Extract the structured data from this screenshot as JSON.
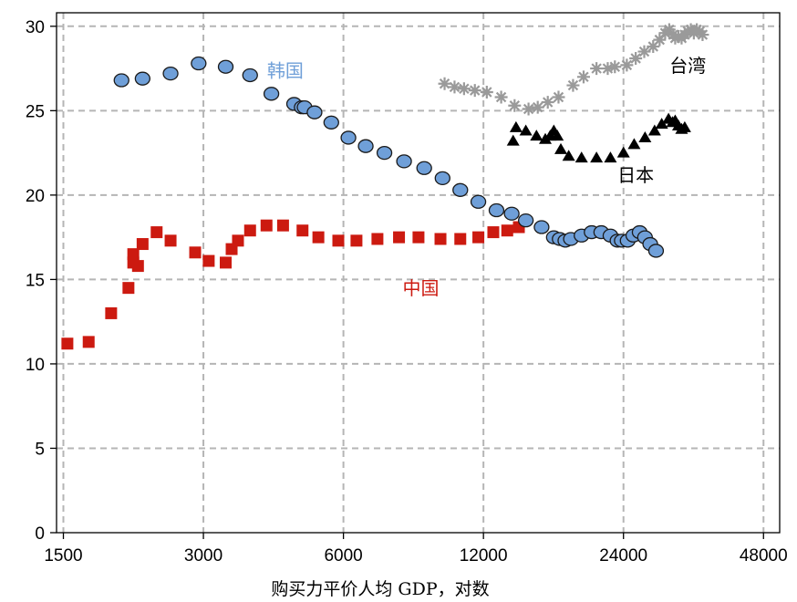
{
  "chart_data": {
    "type": "scatter",
    "xlabel": "购买力平价人均 GDP，对数",
    "ylabel": "",
    "x_scale": "log",
    "xlim": [
      1450,
      52000
    ],
    "ylim": [
      0,
      30.8
    ],
    "x_ticks": [
      1500,
      3000,
      6000,
      12000,
      24000,
      48000
    ],
    "y_ticks": [
      0,
      5,
      10,
      15,
      20,
      25,
      30
    ],
    "grid": true,
    "series": [
      {
        "name": "中国",
        "marker": "square",
        "color": "#cc1a10",
        "points": [
          [
            1530,
            11.2
          ],
          [
            1700,
            11.3
          ],
          [
            1900,
            13.0
          ],
          [
            2070,
            14.5
          ],
          [
            2120,
            16.5
          ],
          [
            2120,
            16.0
          ],
          [
            2170,
            15.8
          ],
          [
            2220,
            17.1
          ],
          [
            2380,
            17.8
          ],
          [
            2550,
            17.3
          ],
          [
            2880,
            16.6
          ],
          [
            3080,
            16.1
          ],
          [
            3350,
            16.0
          ],
          [
            3450,
            16.8
          ],
          [
            3560,
            17.3
          ],
          [
            3780,
            17.9
          ],
          [
            4100,
            18.2
          ],
          [
            4450,
            18.2
          ],
          [
            4900,
            17.9
          ],
          [
            5300,
            17.5
          ],
          [
            5850,
            17.3
          ],
          [
            6400,
            17.3
          ],
          [
            7100,
            17.4
          ],
          [
            7900,
            17.5
          ],
          [
            8700,
            17.5
          ],
          [
            9700,
            17.4
          ],
          [
            10700,
            17.4
          ],
          [
            11700,
            17.5
          ],
          [
            12600,
            17.8
          ],
          [
            13500,
            17.9
          ],
          [
            14300,
            18.1
          ]
        ]
      },
      {
        "name": "韩国",
        "marker": "circle",
        "color": "#6f9fd8",
        "points": [
          [
            2000,
            26.8
          ],
          [
            2220,
            26.9
          ],
          [
            2550,
            27.2
          ],
          [
            2930,
            27.8
          ],
          [
            3350,
            27.6
          ],
          [
            3780,
            27.1
          ],
          [
            4200,
            26.0
          ],
          [
            4700,
            25.4
          ],
          [
            4880,
            25.2
          ],
          [
            4950,
            25.2
          ],
          [
            5200,
            24.9
          ],
          [
            5650,
            24.3
          ],
          [
            6150,
            23.4
          ],
          [
            6700,
            22.9
          ],
          [
            7350,
            22.5
          ],
          [
            8100,
            22.0
          ],
          [
            8950,
            21.6
          ],
          [
            9800,
            21.0
          ],
          [
            10700,
            20.3
          ],
          [
            11700,
            19.6
          ],
          [
            12800,
            19.1
          ],
          [
            13800,
            18.9
          ],
          [
            14800,
            18.5
          ],
          [
            16000,
            18.1
          ],
          [
            17000,
            17.5
          ],
          [
            17500,
            17.4
          ],
          [
            18000,
            17.3
          ],
          [
            18500,
            17.4
          ],
          [
            19500,
            17.6
          ],
          [
            20500,
            17.8
          ],
          [
            21500,
            17.8
          ],
          [
            22500,
            17.6
          ],
          [
            23300,
            17.3
          ],
          [
            23800,
            17.3
          ],
          [
            24500,
            17.3
          ],
          [
            25200,
            17.6
          ],
          [
            26000,
            17.8
          ],
          [
            26700,
            17.5
          ],
          [
            27400,
            17.1
          ],
          [
            28200,
            16.7
          ]
        ]
      },
      {
        "name": "日本",
        "marker": "triangle",
        "color": "#000000",
        "points": [
          [
            13900,
            23.2
          ],
          [
            14100,
            24.0
          ],
          [
            14800,
            23.8
          ],
          [
            15600,
            23.5
          ],
          [
            16300,
            23.3
          ],
          [
            16700,
            23.5
          ],
          [
            17000,
            23.8
          ],
          [
            17300,
            23.5
          ],
          [
            17600,
            22.7
          ],
          [
            18300,
            22.3
          ],
          [
            19500,
            22.2
          ],
          [
            21000,
            22.2
          ],
          [
            22500,
            22.2
          ],
          [
            24000,
            22.5
          ],
          [
            25300,
            23.0
          ],
          [
            26700,
            23.4
          ],
          [
            28000,
            23.8
          ],
          [
            29000,
            24.2
          ],
          [
            30000,
            24.5
          ],
          [
            30600,
            24.3
          ],
          [
            31000,
            24.4
          ],
          [
            31500,
            24.1
          ],
          [
            32000,
            23.9
          ],
          [
            32500,
            24.0
          ]
        ]
      },
      {
        "name": "台湾",
        "marker": "asterisk",
        "color": "#9a9a9a",
        "points": [
          [
            9900,
            26.6
          ],
          [
            10400,
            26.4
          ],
          [
            10900,
            26.3
          ],
          [
            11500,
            26.2
          ],
          [
            12200,
            26.1
          ],
          [
            13100,
            25.8
          ],
          [
            14000,
            25.3
          ],
          [
            15000,
            25.1
          ],
          [
            15700,
            25.2
          ],
          [
            16500,
            25.5
          ],
          [
            17400,
            25.8
          ],
          [
            18700,
            26.5
          ],
          [
            19700,
            27.0
          ],
          [
            21000,
            27.5
          ],
          [
            22200,
            27.5
          ],
          [
            23000,
            27.6
          ],
          [
            24400,
            27.7
          ],
          [
            25500,
            28.1
          ],
          [
            26600,
            28.5
          ],
          [
            27800,
            28.8
          ],
          [
            28700,
            29.2
          ],
          [
            29500,
            29.6
          ],
          [
            30100,
            29.8
          ],
          [
            30700,
            29.5
          ],
          [
            31000,
            29.3
          ],
          [
            31500,
            29.4
          ],
          [
            32000,
            29.3
          ],
          [
            32500,
            29.5
          ],
          [
            33000,
            29.7
          ],
          [
            33500,
            29.8
          ],
          [
            34000,
            29.6
          ],
          [
            34500,
            29.8
          ],
          [
            35000,
            29.7
          ],
          [
            35500,
            29.5
          ]
        ]
      }
    ],
    "annotations": [
      {
        "text": "韩国",
        "x": 4500,
        "y": 27.0,
        "color": "#6f9fd8"
      },
      {
        "text": "台湾",
        "x": 33000,
        "y": 27.3,
        "color": "#000000"
      },
      {
        "text": "日本",
        "x": 25500,
        "y": 20.8,
        "color": "#000000"
      },
      {
        "text": "中国",
        "x": 8800,
        "y": 14.1,
        "color": "#cc1a10"
      }
    ]
  }
}
